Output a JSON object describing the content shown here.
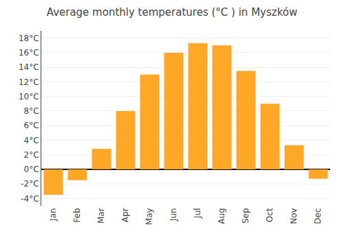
{
  "chart_data": {
    "type": "bar",
    "title": "Average monthly temperatures (°C ) in Myszków",
    "categories": [
      "Jan",
      "Feb",
      "Mar",
      "Apr",
      "May",
      "Jun",
      "Jul",
      "Aug",
      "Sep",
      "Oct",
      "Nov",
      "Dec"
    ],
    "values": [
      -3.5,
      -1.5,
      2.8,
      8.0,
      13.0,
      16.0,
      17.3,
      17.0,
      13.5,
      9.0,
      3.3,
      -1.3
    ],
    "color": "#FFA726",
    "ylim": [
      -5,
      19
    ],
    "yticks": [
      {
        "value": -4,
        "label": "-4°C"
      },
      {
        "value": -2,
        "label": "-2°C"
      },
      {
        "value": 0,
        "label": "0°C"
      },
      {
        "value": 2,
        "label": "2°C"
      },
      {
        "value": 4,
        "label": "4°C"
      },
      {
        "value": 6,
        "label": "6°C"
      },
      {
        "value": 8,
        "label": "8°C"
      },
      {
        "value": 10,
        "label": "10°C"
      },
      {
        "value": 12,
        "label": "12°C"
      },
      {
        "value": 14,
        "label": "14°C"
      },
      {
        "value": 16,
        "label": "16°C"
      },
      {
        "value": 18,
        "label": "18°C"
      }
    ],
    "grid": true
  }
}
